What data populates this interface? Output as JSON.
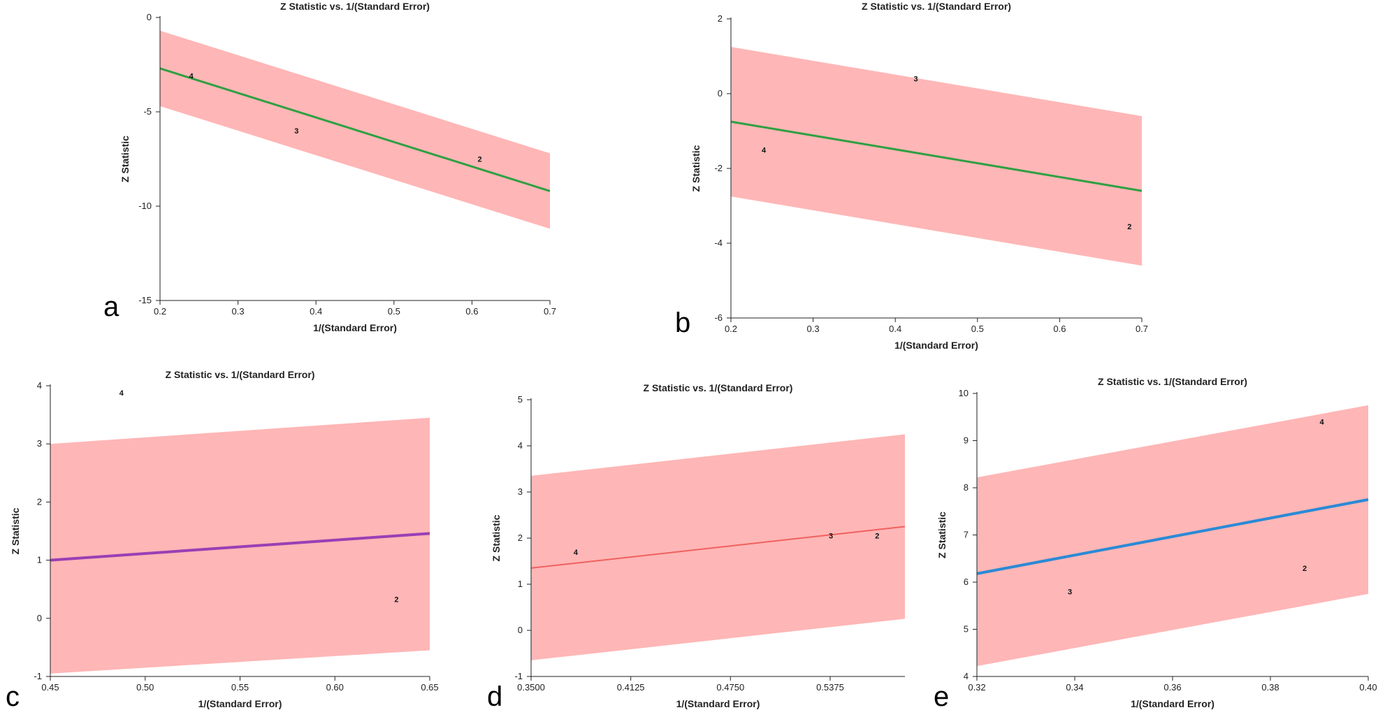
{
  "figure": {
    "panel_count": 5
  },
  "chart_data": [
    {
      "id": "a",
      "type": "line",
      "panel_label": "a",
      "title": "Z Statistic vs. 1/(Standard Error)",
      "xlabel": "1/(Standard Error)",
      "ylabel": "Z Statistic",
      "xlim": [
        0.2,
        0.7
      ],
      "ylim": [
        -15,
        0
      ],
      "xticks": [
        0.2,
        0.3,
        0.4,
        0.5,
        0.6,
        0.7
      ],
      "xtick_labels": [
        "0.2",
        "0.3",
        "0.4",
        "0.5",
        "0.6",
        "0.7"
      ],
      "yticks": [
        -15,
        -10,
        -5,
        0
      ],
      "ytick_labels": [
        "-15",
        "-10",
        "-5",
        "0"
      ],
      "line_color": "#2ea043",
      "band_color": "#ffb6b6",
      "line_width": 3,
      "regression": {
        "x": [
          0.2,
          0.7
        ],
        "y": [
          -2.7,
          -9.2
        ]
      },
      "band": {
        "x": [
          0.2,
          0.7
        ],
        "upper": [
          -0.7,
          -7.2
        ],
        "lower": [
          -4.7,
          -11.2
        ]
      },
      "points": [
        {
          "label": "4",
          "x": 0.24,
          "y": -3.1
        },
        {
          "label": "3",
          "x": 0.375,
          "y": -6.0
        },
        {
          "label": "2",
          "x": 0.61,
          "y": -7.5
        }
      ]
    },
    {
      "id": "b",
      "type": "line",
      "panel_label": "b",
      "title": "Z Statistic vs. 1/(Standard Error)",
      "xlabel": "1/(Standard Error)",
      "ylabel": "Z Statistic",
      "xlim": [
        0.2,
        0.7
      ],
      "ylim": [
        -6,
        2
      ],
      "xticks": [
        0.2,
        0.3,
        0.4,
        0.5,
        0.6,
        0.7
      ],
      "xtick_labels": [
        "0.2",
        "0.3",
        "0.4",
        "0.5",
        "0.6",
        "0.7"
      ],
      "yticks": [
        -6,
        -4,
        -2,
        0,
        2
      ],
      "ytick_labels": [
        "-6",
        "-4",
        "-2",
        "0",
        "2"
      ],
      "line_color": "#2ea043",
      "band_color": "#ffb6b6",
      "line_width": 3,
      "regression": {
        "x": [
          0.2,
          0.7
        ],
        "y": [
          -0.75,
          -2.6
        ]
      },
      "band": {
        "x": [
          0.2,
          0.7
        ],
        "upper": [
          1.25,
          -0.6
        ],
        "lower": [
          -2.75,
          -4.6
        ]
      },
      "points": [
        {
          "label": "3",
          "x": 0.425,
          "y": 0.4
        },
        {
          "label": "4",
          "x": 0.24,
          "y": -1.5
        },
        {
          "label": "2",
          "x": 0.685,
          "y": -3.55
        }
      ]
    },
    {
      "id": "c",
      "type": "line",
      "panel_label": "c",
      "title": "Z Statistic vs. 1/(Standard Error)",
      "xlabel": "1/(Standard Error)",
      "ylabel": "Z Statistic",
      "xlim": [
        0.45,
        0.65
      ],
      "ylim": [
        -1,
        4
      ],
      "xticks": [
        0.45,
        0.5,
        0.55,
        0.6,
        0.65
      ],
      "xtick_labels": [
        "0.45",
        "0.50",
        "0.55",
        "0.60",
        "0.65"
      ],
      "yticks": [
        -1,
        0,
        1,
        2,
        3,
        4
      ],
      "ytick_labels": [
        "-1",
        "0",
        "1",
        "2",
        "3",
        "4"
      ],
      "line_color": "#9b3fb5",
      "band_color": "#ffb6b6",
      "line_width": 4,
      "regression": {
        "x": [
          0.45,
          0.65
        ],
        "y": [
          1.0,
          1.46
        ]
      },
      "band": {
        "x": [
          0.45,
          0.65
        ],
        "upper": [
          3.0,
          3.45
        ],
        "lower": [
          -0.95,
          -0.55
        ]
      },
      "points": [
        {
          "label": "4",
          "x": 0.4875,
          "y": 3.88
        },
        {
          "label": "2",
          "x": 0.6325,
          "y": 0.33
        }
      ]
    },
    {
      "id": "d",
      "type": "line",
      "panel_label": "d",
      "title": "Z Statistic vs. 1/(Standard Error)",
      "xlabel": "1/(Standard Error)",
      "ylabel": "Z Statistic",
      "xlim": [
        0.35,
        0.5844
      ],
      "ylim": [
        -1,
        5
      ],
      "xticks": [
        0.35,
        0.4125,
        0.475,
        0.5375
      ],
      "xtick_labels": [
        "0.3500",
        "0.4125",
        "0.4750",
        "0.5375"
      ],
      "yticks": [
        -1,
        0,
        1,
        2,
        3,
        4,
        5
      ],
      "ytick_labels": [
        "-1",
        "0",
        "1",
        "2",
        "3",
        "4",
        "5"
      ],
      "line_color": "#f06060",
      "band_color": "#ffb6b6",
      "line_width": 2,
      "regression": {
        "x": [
          0.35,
          0.5844
        ],
        "y": [
          1.35,
          2.25
        ]
      },
      "band": {
        "x": [
          0.35,
          0.5844
        ],
        "upper": [
          3.35,
          4.25
        ],
        "lower": [
          -0.65,
          0.25
        ]
      },
      "points": [
        {
          "label": "4",
          "x": 0.378,
          "y": 1.7
        },
        {
          "label": "3",
          "x": 0.538,
          "y": 2.05
        },
        {
          "label": "2",
          "x": 0.567,
          "y": 2.05
        }
      ]
    },
    {
      "id": "e",
      "type": "line",
      "panel_label": "e",
      "title": "Z Statistic vs. 1/(Standard Error)",
      "xlabel": "1/(Standard Error)",
      "ylabel": "Z Statistic",
      "xlim": [
        0.32,
        0.4
      ],
      "ylim": [
        4,
        10
      ],
      "xticks": [
        0.32,
        0.34,
        0.36,
        0.38,
        0.4
      ],
      "xtick_labels": [
        "0.32",
        "0.34",
        "0.36",
        "0.38",
        "0.40"
      ],
      "yticks": [
        4,
        5,
        6,
        7,
        8,
        9,
        10
      ],
      "ytick_labels": [
        "4",
        "5",
        "6",
        "7",
        "8",
        "9",
        "10"
      ],
      "line_color": "#2b8ad6",
      "band_color": "#ffb6b6",
      "line_width": 4,
      "regression": {
        "x": [
          0.32,
          0.4
        ],
        "y": [
          6.18,
          7.75
        ]
      },
      "band": {
        "x": [
          0.32,
          0.4
        ],
        "upper": [
          8.22,
          9.75
        ],
        "lower": [
          4.22,
          5.75
        ]
      },
      "points": [
        {
          "label": "4",
          "x": 0.3905,
          "y": 9.4
        },
        {
          "label": "2",
          "x": 0.387,
          "y": 6.3
        },
        {
          "label": "3",
          "x": 0.339,
          "y": 5.8
        }
      ]
    }
  ]
}
